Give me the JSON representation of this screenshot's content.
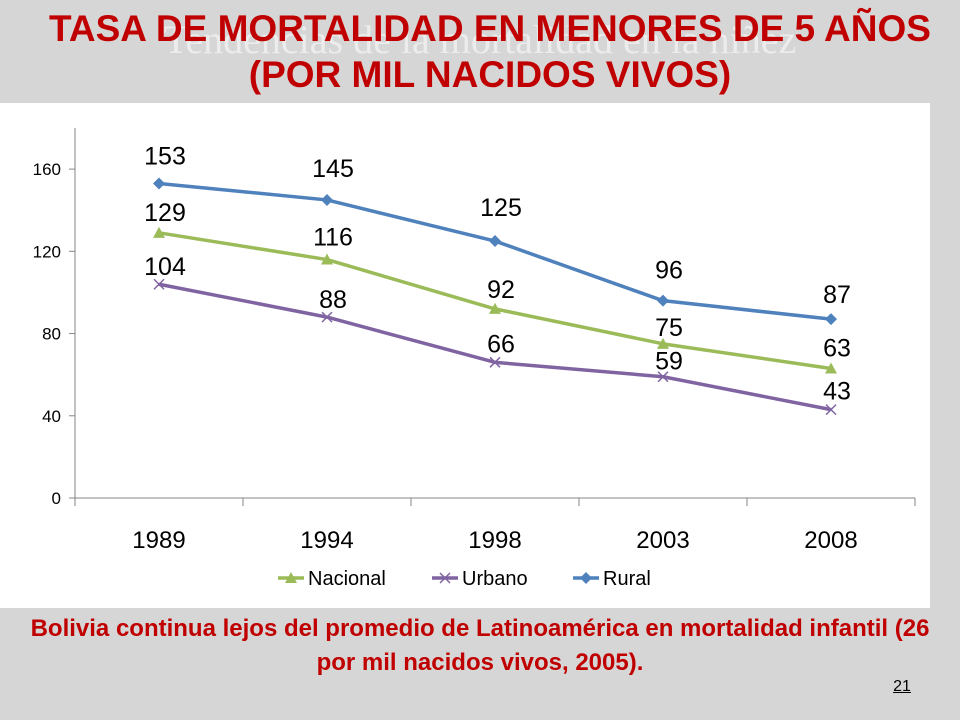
{
  "slide": {
    "title": "TASA DE MORTALIDAD EN MENORES DE 5 AÑOS (POR MIL NACIDOS VIVOS)",
    "ghost_title": "Tendencias de la mortalidad en la niñez",
    "footer": "Bolivia continua lejos del promedio de Latinoamérica en mortalidad infantil (26 por mil nacidos vivos, 2005).",
    "page_number": "21"
  },
  "chart_data": {
    "type": "line",
    "title": "",
    "xlabel": "",
    "ylabel": "",
    "categories": [
      "1989",
      "1994",
      "1998",
      "2003",
      "2008"
    ],
    "ylim": [
      0,
      180
    ],
    "yticks": [
      0,
      40,
      80,
      120,
      160
    ],
    "grid": false,
    "legend_position": "bottom",
    "series": [
      {
        "name": "Nacional",
        "values": [
          129,
          116,
          92,
          75,
          63
        ],
        "color": "#9bbb59",
        "marker": "triangle"
      },
      {
        "name": "Urbano",
        "values": [
          104,
          88,
          66,
          59,
          43
        ],
        "color": "#8064a2",
        "marker": "x"
      },
      {
        "name": "Rural",
        "values": [
          153,
          145,
          125,
          96,
          87
        ],
        "color": "#4f81bd",
        "marker": "diamond"
      }
    ]
  }
}
